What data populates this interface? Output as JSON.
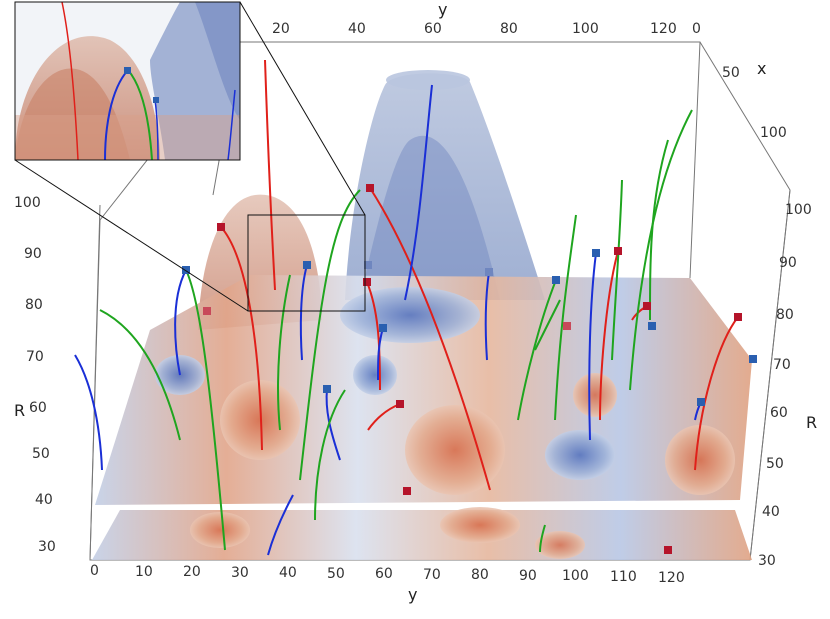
{
  "axes": {
    "bottom_y": {
      "label": "y",
      "ticks": [
        "0",
        "10",
        "20",
        "30",
        "40",
        "50",
        "60",
        "70",
        "80",
        "90",
        "100",
        "110",
        "120"
      ]
    },
    "top_y": {
      "label": "y",
      "ticks": [
        "20",
        "40",
        "60",
        "80",
        "100",
        "120"
      ]
    },
    "top_x": {
      "label": "x",
      "ticks": [
        "0",
        "50",
        "100"
      ]
    },
    "left_R": {
      "label": "R",
      "ticks": [
        "30",
        "40",
        "50",
        "60",
        "70",
        "80",
        "90",
        "100"
      ]
    },
    "right_R": {
      "label": "R",
      "ticks": [
        "30",
        "40",
        "50",
        "60",
        "70",
        "80",
        "90",
        "100"
      ]
    }
  },
  "colors": {
    "warm_surface": "#cf8b6c",
    "cool_surface": "#8fa6cf",
    "red_line": "#e0201a",
    "blue_line": "#1a2fd6",
    "green_line": "#1fa51f",
    "red_marker": "#b5142a",
    "blue_marker": "#2a5fb0",
    "frame": "#777777"
  }
}
